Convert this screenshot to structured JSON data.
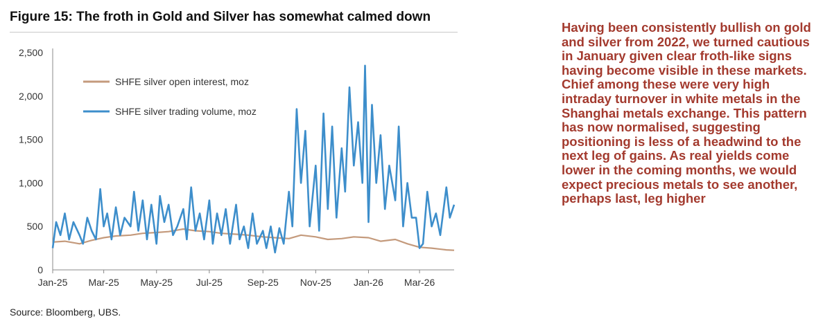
{
  "title": "Figure 15: The froth in Gold and Silver has somewhat calmed down",
  "source": "Source: Bloomberg, UBS.",
  "commentary": "Having been consistently bullish on gold and silver from 2022, we turned cautious in January given clear froth-like signs having become visible in these markets. Chief among these were very high intraday turnover in white metals in the Shanghai metals exchange. This pattern has now normalised, suggesting positioning is less of a headwind to the next leg of gains. As real yields come lower in the coming months, we would expect precious metals to see another, perhaps last, leg higher",
  "colors": {
    "commentary": "#a33a2e",
    "open_interest": "#c49a7c",
    "trading_volume": "#3d8ecb"
  },
  "chart_data": {
    "type": "line",
    "xlabel": "",
    "ylabel": "",
    "ylim": [
      0,
      2500
    ],
    "xlim": [
      "2025-01-01",
      "2026-04-10"
    ],
    "y_ticks": [
      "0",
      "500",
      "1,000",
      "1,500",
      "2,000",
      "2,500"
    ],
    "x_ticks": [
      "Jan-25",
      "Mar-25",
      "May-25",
      "Jul-25",
      "Sep-25",
      "Nov-25",
      "Jan-26",
      "Mar-26"
    ],
    "grid": false,
    "legend_position": "top-left",
    "series": [
      {
        "name": "SHFE silver open interest, moz",
        "x": [
          "2025-01-01",
          "2025-01-15",
          "2025-02-01",
          "2025-02-15",
          "2025-03-01",
          "2025-03-15",
          "2025-04-01",
          "2025-04-15",
          "2025-05-01",
          "2025-05-15",
          "2025-06-01",
          "2025-06-15",
          "2025-07-01",
          "2025-07-15",
          "2025-08-01",
          "2025-08-15",
          "2025-09-01",
          "2025-09-15",
          "2025-10-01",
          "2025-10-15",
          "2025-11-01",
          "2025-11-15",
          "2025-12-01",
          "2025-12-15",
          "2026-01-01",
          "2026-01-15",
          "2026-02-01",
          "2026-02-15",
          "2026-03-01",
          "2026-03-15",
          "2026-04-01",
          "2026-04-10"
        ],
        "y": [
          320,
          330,
          300,
          340,
          370,
          390,
          400,
          420,
          430,
          440,
          470,
          450,
          440,
          420,
          410,
          400,
          380,
          370,
          360,
          400,
          380,
          350,
          360,
          380,
          370,
          330,
          350,
          300,
          260,
          250,
          230,
          225
        ]
      },
      {
        "name": "SHFE silver trading volume, moz",
        "x": [
          "2025-01-01",
          "2025-01-05",
          "2025-01-10",
          "2025-01-15",
          "2025-01-20",
          "2025-01-25",
          "2025-02-01",
          "2025-02-05",
          "2025-02-10",
          "2025-02-15",
          "2025-02-20",
          "2025-02-25",
          "2025-03-01",
          "2025-03-05",
          "2025-03-10",
          "2025-03-15",
          "2025-03-20",
          "2025-03-25",
          "2025-04-01",
          "2025-04-05",
          "2025-04-10",
          "2025-04-15",
          "2025-04-20",
          "2025-04-25",
          "2025-05-01",
          "2025-05-05",
          "2025-05-10",
          "2025-05-15",
          "2025-05-20",
          "2025-05-25",
          "2025-06-01",
          "2025-06-05",
          "2025-06-10",
          "2025-06-15",
          "2025-06-20",
          "2025-06-25",
          "2025-07-01",
          "2025-07-05",
          "2025-07-10",
          "2025-07-15",
          "2025-07-20",
          "2025-07-25",
          "2025-08-01",
          "2025-08-05",
          "2025-08-10",
          "2025-08-15",
          "2025-08-20",
          "2025-08-25",
          "2025-09-01",
          "2025-09-05",
          "2025-09-10",
          "2025-09-15",
          "2025-09-20",
          "2025-09-25",
          "2025-10-01",
          "2025-10-05",
          "2025-10-10",
          "2025-10-15",
          "2025-10-20",
          "2025-10-25",
          "2025-11-01",
          "2025-11-05",
          "2025-11-10",
          "2025-11-15",
          "2025-11-20",
          "2025-11-25",
          "2025-12-01",
          "2025-12-05",
          "2025-12-10",
          "2025-12-15",
          "2025-12-20",
          "2025-12-25",
          "2025-12-28",
          "2026-01-01",
          "2026-01-05",
          "2026-01-10",
          "2026-01-15",
          "2026-01-20",
          "2026-01-25",
          "2026-02-01",
          "2026-02-05",
          "2026-02-10",
          "2026-02-15",
          "2026-02-20",
          "2026-02-25",
          "2026-03-01",
          "2026-03-05",
          "2026-03-10",
          "2026-03-15",
          "2026-03-20",
          "2026-03-25",
          "2026-04-01",
          "2026-04-05",
          "2026-04-10"
        ],
        "y": [
          250,
          550,
          400,
          650,
          350,
          550,
          400,
          300,
          600,
          450,
          350,
          930,
          500,
          650,
          350,
          720,
          400,
          600,
          500,
          900,
          450,
          800,
          350,
          750,
          300,
          850,
          550,
          750,
          400,
          500,
          700,
          350,
          950,
          450,
          650,
          350,
          800,
          300,
          650,
          400,
          700,
          300,
          750,
          350,
          500,
          250,
          650,
          300,
          450,
          250,
          500,
          200,
          480,
          300,
          900,
          500,
          1850,
          1000,
          1600,
          500,
          1200,
          450,
          1800,
          700,
          1650,
          600,
          1400,
          900,
          2100,
          1200,
          1700,
          1000,
          2350,
          550,
          1900,
          1000,
          1550,
          700,
          1200,
          800,
          1650,
          500,
          1000,
          600,
          600,
          250,
          300,
          900,
          500,
          650,
          400,
          950,
          600,
          750
        ]
      }
    ]
  }
}
